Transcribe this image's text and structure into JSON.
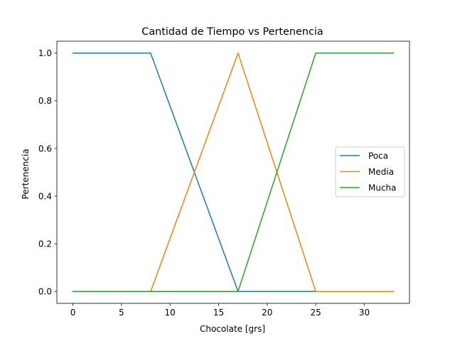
{
  "chart_data": {
    "type": "line",
    "title": "Cantidad de Tiempo vs Pertenencia",
    "xlabel": "Chocolate [grs]",
    "ylabel": "Pertenencia",
    "xlim": [
      -1.65,
      34.65
    ],
    "ylim": [
      -0.05,
      1.05
    ],
    "xticks": [
      0,
      5,
      10,
      15,
      20,
      25,
      30
    ],
    "xtick_labels": [
      "0",
      "5",
      "10",
      "15",
      "20",
      "25",
      "30"
    ],
    "yticks": [
      0.0,
      0.2,
      0.4,
      0.6,
      0.8,
      1.0
    ],
    "ytick_labels": [
      "0.0",
      "0.2",
      "0.4",
      "0.6",
      "0.8",
      "1.0"
    ],
    "grid": false,
    "legend_position": "center-right",
    "series": [
      {
        "name": "Poca",
        "color": "#1f77b4",
        "x": [
          0,
          8,
          17,
          25,
          33
        ],
        "y": [
          1,
          1,
          0,
          0,
          0
        ]
      },
      {
        "name": "Media",
        "color": "#ff7f0e",
        "x": [
          0,
          8,
          17,
          25,
          33
        ],
        "y": [
          0,
          0,
          1,
          0,
          0
        ]
      },
      {
        "name": "Mucha",
        "color": "#2ca02c",
        "x": [
          0,
          8,
          17,
          25,
          33
        ],
        "y": [
          0,
          0,
          0,
          1,
          1
        ]
      }
    ]
  }
}
